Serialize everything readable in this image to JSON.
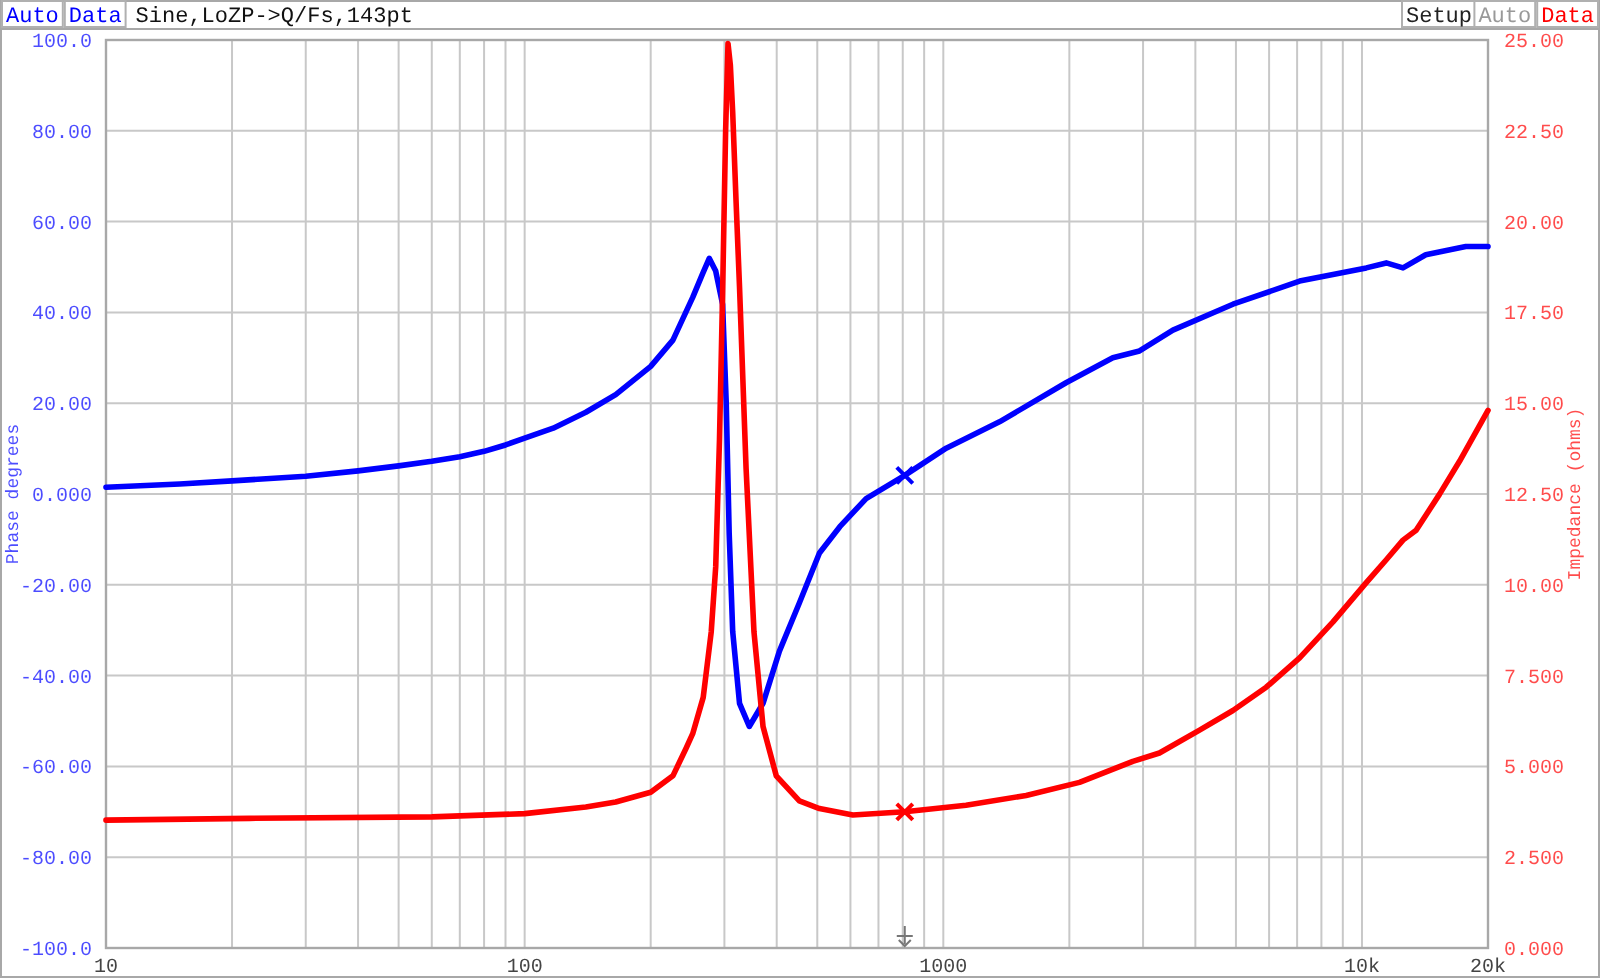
{
  "chart_data": {
    "type": "line",
    "title": "Sine,LoZP->Q/Fs,143pt",
    "ylabel": "Phase degrees",
    "y2label": "Impedance (ohms)",
    "annotations": [
      "Auto",
      "Data",
      "Setup",
      "Auto",
      "Data"
    ],
    "log": "x",
    "grid": true,
    "xlim": [
      10,
      20000
    ],
    "xticks": [
      10,
      {
        "value": 20,
        "label": null
      },
      {
        "value": 30,
        "label": null
      },
      {
        "value": 40,
        "label": null
      },
      {
        "value": 50,
        "label": null
      },
      {
        "value": 60,
        "label": null
      },
      {
        "value": 70,
        "label": null
      },
      {
        "value": 80,
        "label": null
      },
      {
        "value": 90,
        "label": null
      },
      100,
      {
        "value": 200,
        "label": null
      },
      {
        "value": 300,
        "label": null
      },
      {
        "value": 400,
        "label": null
      },
      {
        "value": 500,
        "label": null
      },
      {
        "value": 600,
        "label": null
      },
      {
        "value": 700,
        "label": null
      },
      {
        "value": 800,
        "label": null
      },
      {
        "value": 900,
        "label": null
      },
      1000,
      {
        "value": 2000,
        "label": null
      },
      {
        "value": 3000,
        "label": null
      },
      {
        "value": 4000,
        "label": null
      },
      {
        "value": 5000,
        "label": null
      },
      {
        "value": 6000,
        "label": null
      },
      {
        "value": 7000,
        "label": null
      },
      {
        "value": 8000,
        "label": null
      },
      {
        "value": 9000,
        "label": null
      },
      {
        "value": 10000,
        "label": "10k"
      },
      {
        "value": 20000,
        "label": "20k"
      }
    ],
    "ylim": [
      -100,
      100
    ],
    "yticks": [
      {
        "value": 100,
        "label": "100.0"
      },
      {
        "value": 80,
        "label": "80.00"
      },
      {
        "value": 60,
        "label": "60.00"
      },
      {
        "value": 40,
        "label": "40.00"
      },
      {
        "value": 20,
        "label": "20.00"
      },
      {
        "value": 0,
        "label": "0.000"
      },
      {
        "value": -20,
        "label": "-20.00"
      },
      {
        "value": -40,
        "label": "-40.00"
      },
      {
        "value": -60,
        "label": "-60.00"
      },
      {
        "value": -80,
        "label": "-80.00"
      },
      {
        "value": -100,
        "label": "-100.0"
      }
    ],
    "y2lim": [
      0,
      25
    ],
    "y2ticks": [
      {
        "value": 25,
        "label": "25.00"
      },
      {
        "value": 22.5,
        "label": "22.50"
      },
      {
        "value": 20,
        "label": "20.00"
      },
      {
        "value": 17.5,
        "label": "17.50"
      },
      {
        "value": 15,
        "label": "15.00"
      },
      {
        "value": 12.5,
        "label": "12.50"
      },
      {
        "value": 10,
        "label": "10.00"
      },
      {
        "value": 7.5,
        "label": "7.500"
      },
      {
        "value": 5,
        "label": "5.000"
      },
      {
        "value": 2.5,
        "label": "2.500"
      },
      {
        "value": 0,
        "label": "0.000"
      }
    ],
    "series": [
      {
        "color": "#0000ff",
        "x": [
          10,
          15,
          20,
          30,
          40,
          50,
          60,
          70,
          80,
          90,
          100,
          117,
          140,
          165,
          200,
          226,
          252,
          266,
          276,
          286,
          297,
          303,
          308,
          314,
          326,
          344,
          371,
          406,
          453,
          506,
          566,
          654,
          809,
          1016,
          1362,
          1964,
          2540,
          2942,
          3535,
          4918,
          7097,
          10240,
          11430,
          12530,
          14200,
          17700,
          20000
        ],
        "values": [
          1.5,
          2.2,
          2.9,
          3.9,
          5.1,
          6.2,
          7.2,
          8.2,
          9.4,
          10.8,
          12.3,
          14.5,
          18.0,
          21.9,
          28.1,
          33.9,
          43.3,
          48.5,
          51.9,
          49.1,
          41.8,
          20.2,
          -8.7,
          -30.3,
          -46.1,
          -51.2,
          -46.1,
          -34.6,
          -24.0,
          -13.0,
          -7.2,
          -1.0,
          4.1,
          10.1,
          15.9,
          24.5,
          30.0,
          31.5,
          36.1,
          41.8,
          46.9,
          49.8,
          50.9,
          49.8,
          52.7,
          54.5,
          54.5
        ]
      },
      {
        "axis": "y2",
        "color": "#ff0000",
        "x": [
          10,
          22,
          60,
          100,
          140,
          165,
          200,
          226,
          243,
          252,
          267,
          279,
          286,
          292,
          297,
          302,
          306,
          310,
          314,
          320,
          326,
          338,
          353,
          371,
          399,
          453,
          506,
          608,
          809,
          1133,
          1577,
          2115,
          2836,
          3283,
          4093,
          4918,
          5906,
          7097,
          8528,
          10240,
          11430,
          12530,
          13470,
          15310,
          17100,
          20000
        ],
        "values": [
          3.52,
          3.57,
          3.61,
          3.7,
          3.88,
          4.02,
          4.29,
          4.74,
          5.5,
          5.9,
          6.9,
          8.7,
          10.5,
          14.0,
          18.0,
          22.5,
          24.9,
          24.3,
          23.0,
          20.5,
          18.2,
          13.2,
          8.7,
          6.1,
          4.74,
          4.05,
          3.84,
          3.66,
          3.75,
          3.93,
          4.2,
          4.56,
          5.14,
          5.37,
          6.0,
          6.54,
          7.18,
          7.99,
          8.98,
          10.06,
          10.69,
          11.23,
          11.5,
          12.49,
          13.4,
          14.8
        ]
      },
      {
        "type": "scatter",
        "marker": "cross",
        "color": "#0000ff",
        "x": [
          809
        ],
        "values": [
          4.1
        ]
      },
      {
        "type": "scatter",
        "marker": "cross",
        "axis": "y2",
        "color": "#ff0000",
        "x": [
          809
        ],
        "values": [
          3.75
        ]
      }
    ]
  }
}
